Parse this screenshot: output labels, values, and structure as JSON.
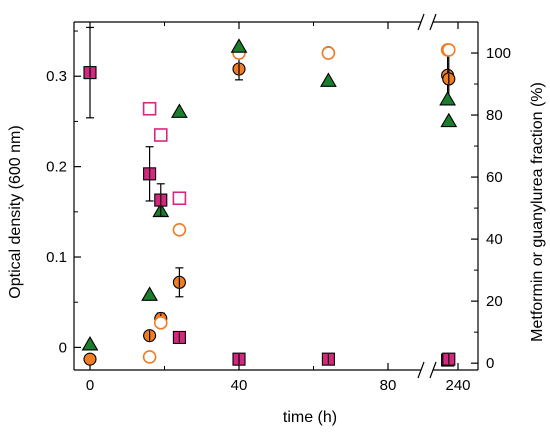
{
  "chart_data": {
    "type": "scatter",
    "title": "",
    "xlabel": "time (h)",
    "ylabel_left": "Optical density (600 nm)",
    "ylabel_right": "Metformin or guanylurea fraction (%)",
    "x_ticks": [
      {
        "value": 0,
        "label": "0"
      },
      {
        "value": 40,
        "label": "40"
      },
      {
        "value": 80,
        "label": "80"
      },
      {
        "value": 240,
        "label": "240"
      }
    ],
    "x_break_between": [
      100,
      230
    ],
    "y_left_ticks": [
      {
        "value": 0,
        "label": "0"
      },
      {
        "value": 0.1,
        "label": "0.1"
      },
      {
        "value": 0.2,
        "label": "0.2"
      },
      {
        "value": 0.3,
        "label": "0.3"
      }
    ],
    "y_right_ticks": [
      {
        "value": 0,
        "label": "0"
      },
      {
        "value": 20,
        "label": "20"
      },
      {
        "value": 40,
        "label": "40"
      },
      {
        "value": 60,
        "label": "60"
      },
      {
        "value": 80,
        "label": "80"
      },
      {
        "value": 100,
        "label": "100"
      }
    ],
    "y_left_range": [
      -0.025,
      0.36
    ],
    "y_right_range": [
      -2.2,
      110
    ],
    "colors": {
      "orange": "#f07c24",
      "magenta": "#d4287f",
      "green": "#1b7d2e",
      "error_bar": "#000000"
    },
    "series": [
      {
        "axis": "left",
        "marker": "circle",
        "fill": "orange",
        "outlined": true,
        "points": [
          {
            "x": 0,
            "y": -0.013
          },
          {
            "x": 16,
            "y": 0.013,
            "err": 0.004
          },
          {
            "x": 19,
            "y": 0.032,
            "err": 0.006
          },
          {
            "x": 24,
            "y": 0.072,
            "err": 0.016
          },
          {
            "x": 40,
            "y": 0.308,
            "err": 0.012
          },
          {
            "x": 64,
            "y": 0.326,
            "err": 0.004
          },
          {
            "x": 96,
            "y": 0.301,
            "err": 0.03
          },
          {
            "x": 236,
            "y": 0.297,
            "err": 0.028
          }
        ]
      },
      {
        "axis": "right",
        "marker": "circle",
        "fill": "none",
        "edge": "orange",
        "points": [
          {
            "x": 16,
            "y": 2
          },
          {
            "x": 19,
            "y": 13
          },
          {
            "x": 24,
            "y": 43
          },
          {
            "x": 40,
            "y": 100
          },
          {
            "x": 64,
            "y": 100
          },
          {
            "x": 96,
            "y": 101
          },
          {
            "x": 236,
            "y": 101
          }
        ]
      },
      {
        "axis": "right",
        "marker": "triangle",
        "fill": "green",
        "outlined": true,
        "points": [
          {
            "x": 0,
            "y": 6
          },
          {
            "x": 16,
            "y": 22
          },
          {
            "x": 19,
            "y": 49
          },
          {
            "x": 24,
            "y": 81
          },
          {
            "x": 40,
            "y": 102
          },
          {
            "x": 64,
            "y": 91
          },
          {
            "x": 96,
            "y": 85
          },
          {
            "x": 236,
            "y": 78
          }
        ]
      },
      {
        "axis": "left",
        "marker": "square",
        "fill": "magenta",
        "outlined": true,
        "points": [
          {
            "x": 0,
            "y": 0.304,
            "err": 0.05
          },
          {
            "x": 16,
            "y": 0.192,
            "err": 0.03
          },
          {
            "x": 19,
            "y": 0.163,
            "err": 0.018
          },
          {
            "x": 24,
            "y": 0.011,
            "err": 0.002
          },
          {
            "x": 40,
            "y": -0.013,
            "err": 0.003
          },
          {
            "x": 64,
            "y": -0.013,
            "err": 0.003
          },
          {
            "x": 96,
            "y": -0.014,
            "err": 0.003
          },
          {
            "x": 236,
            "y": -0.013,
            "err": 0.003
          }
        ]
      },
      {
        "axis": "left",
        "marker": "square",
        "fill": "none",
        "edge": "magenta",
        "points": [
          {
            "x": 16,
            "y": 0.264
          },
          {
            "x": 19,
            "y": 0.235
          },
          {
            "x": 24,
            "y": 0.165
          }
        ]
      }
    ]
  }
}
